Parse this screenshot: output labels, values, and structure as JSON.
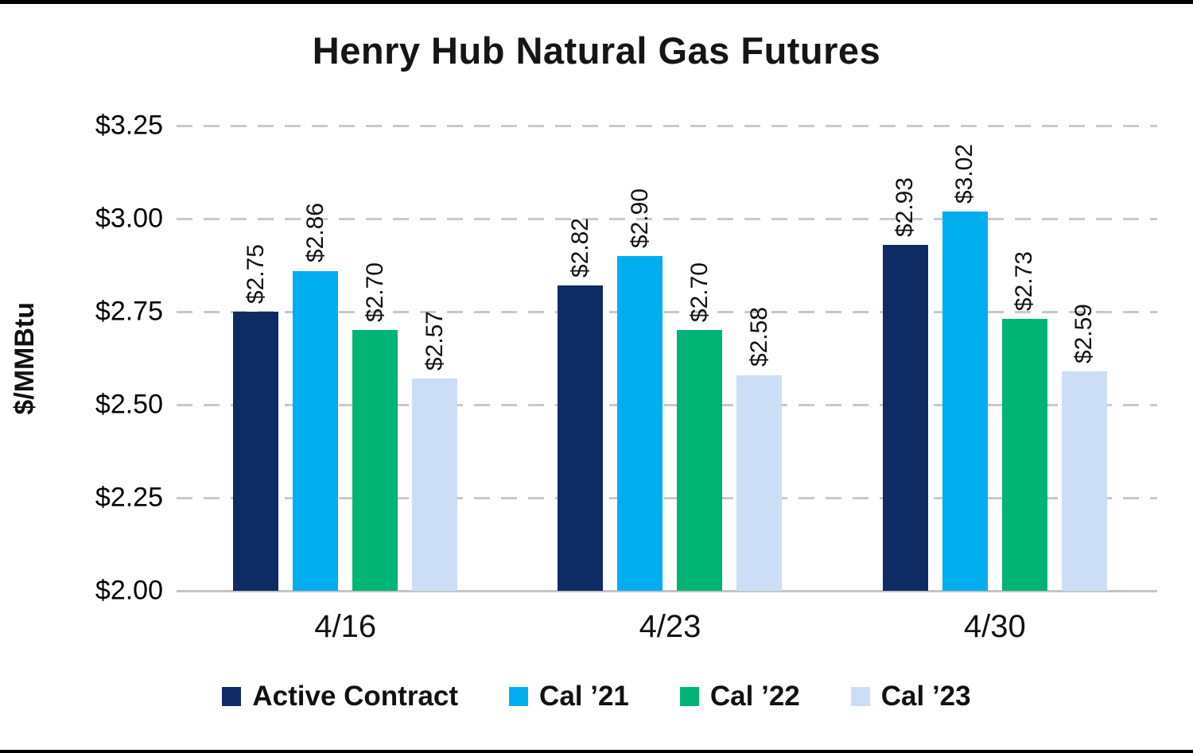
{
  "title": "Henry Hub Natural Gas Futures",
  "chart_data": {
    "type": "bar",
    "title": "Henry Hub Natural Gas Futures",
    "xlabel": "",
    "ylabel": "$/MMBtu",
    "ylim": [
      2.0,
      3.25
    ],
    "ytick_step": 0.25,
    "ytick_labels": [
      "$2.00",
      "$2.25",
      "$2.50",
      "$2.75",
      "$3.00",
      "$3.25"
    ],
    "grid": "dashed-horizontal",
    "legend_position": "bottom",
    "categories": [
      "4/16",
      "4/23",
      "4/30"
    ],
    "series": [
      {
        "name": "Active Contract",
        "color": "#0E2B63",
        "values": [
          2.75,
          2.82,
          2.93
        ],
        "labels": [
          "$2.75",
          "$2.82",
          "$2.93"
        ]
      },
      {
        "name": "Cal ’21",
        "color": "#00AEEF",
        "values": [
          2.86,
          2.9,
          3.02
        ],
        "labels": [
          "$2.86",
          "$2.90",
          "$3.02"
        ]
      },
      {
        "name": "Cal ’22",
        "color": "#00B476",
        "values": [
          2.7,
          2.7,
          2.73
        ],
        "labels": [
          "$2.70",
          "$2.70",
          "$2.73"
        ]
      },
      {
        "name": "Cal ’23",
        "color": "#CBDEF5",
        "values": [
          2.57,
          2.58,
          2.59
        ],
        "labels": [
          "$2.57",
          "$2.58",
          "$2.59"
        ]
      }
    ]
  }
}
